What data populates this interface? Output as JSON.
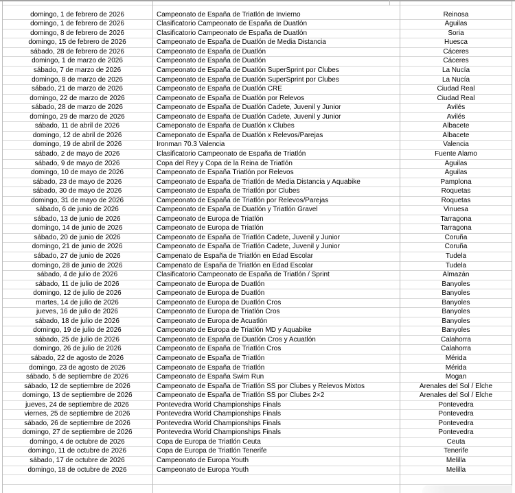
{
  "table": {
    "columns": [
      {
        "key": "date",
        "align": "center"
      },
      {
        "key": "event",
        "align": "left"
      },
      {
        "key": "location",
        "align": "center"
      }
    ],
    "rows": [
      {
        "date": "domingo, 1 de febrero de 2026",
        "event": "Campeonato de España de Triatlón de Invierno",
        "location": "Reinosa"
      },
      {
        "date": "domingo, 1 de febrero de 2026",
        "event": "Clasificatorio Campeonato de España de Duatlón",
        "location": "Aguilas"
      },
      {
        "date": "domingo, 8 de febrero de 2026",
        "event": "Clasificatorio Campeonato de España de Duatlón",
        "location": "Soria"
      },
      {
        "date": "domingo, 15 de febrero de 2026",
        "event": "Campeonato de España de Duatlón de Media Distancia",
        "location": "Huesca"
      },
      {
        "date": "sábado, 28 de febrero de 2026",
        "event": "Campeonato de España de Duatlón",
        "location": "Cáceres"
      },
      {
        "date": "domingo, 1 de marzo de 2026",
        "event": "Campeonato de España de Duatlón",
        "location": "Cáceres"
      },
      {
        "date": "sábado, 7 de marzo de 2026",
        "event": "Campeonato de España de Duatlón SuperSprint por Clubes",
        "location": "La Nucía"
      },
      {
        "date": "domingo, 8 de marzo de 2026",
        "event": "Campeonato de España de Duatlón SuperSprint por Clubes",
        "location": "La Nucía"
      },
      {
        "date": "sábado, 21 de marzo de 2026",
        "event": "Campeonato de España de Duatlón CRE",
        "location": "Ciudad Real"
      },
      {
        "date": "domingo, 22 de marzo de 2026",
        "event": "Campeonato de España de Duatlón por Relevos",
        "location": "Ciudad Real"
      },
      {
        "date": "sábado, 28 de marzo de 2026",
        "event": "Campeonato de España de Duatlón Cadete, Juvenil y Junior",
        "location": "Avilés"
      },
      {
        "date": "domingo, 29 de marzo de 2026",
        "event": "Campeonato de España de Duatlón Cadete, Juvenil y Junior",
        "location": "Avilés"
      },
      {
        "date": "sábado, 11 de abril de 2026",
        "event": "Cameponato de España de Duatlón x Clubes",
        "location": "Albacete"
      },
      {
        "date": "domingo, 12 de abril de 2026",
        "event": "Cameponato de España de Duatlón x Relevos/Parejas",
        "location": "Albacete"
      },
      {
        "date": "domingo, 19 de abril de 2026",
        "event": "Ironman 70.3 Valencia",
        "location": "Valencia"
      },
      {
        "date": "sábado, 2 de mayo de 2026",
        "event": "Clasificatorio Campeonato de España de Triatlón",
        "location": "Fuente Alamo"
      },
      {
        "date": "sábado, 9 de mayo de 2026",
        "event": "Copa del Rey y Copa de la Reina de Triatlón",
        "location": "Aguilas"
      },
      {
        "date": "domingo, 10 de mayo de 2026",
        "event": "Campeonato de España Triatlón por Relevos",
        "location": "Aguilas"
      },
      {
        "date": "sábado, 23 de mayo de 2026",
        "event": "Campeonato de España de Triatlón de Media Distancia y Aquabike",
        "location": "Pamplona"
      },
      {
        "date": "sábado, 30 de mayo de 2026",
        "event": "Campeonato de España de Triatlón por Clubes",
        "location": "Roquetas"
      },
      {
        "date": "domingo, 31 de mayo de 2026",
        "event": "Campeonato de España de Triatlón por Relevos/Parejas",
        "location": "Roquetas"
      },
      {
        "date": "sábado, 6 de junio de 2026",
        "event": "Campeonato de España de Duatlón y Triatlón Gravel",
        "location": "Vinuesa"
      },
      {
        "date": "sábado, 13 de junio de 2026",
        "event": "Campeonato de Europa de Triatlón",
        "location": "Tarragona"
      },
      {
        "date": "domingo, 14 de junio de 2026",
        "event": "Campeonato de Europa de Triatlón",
        "location": "Tarragona"
      },
      {
        "date": "sábado, 20 de junio de 2026",
        "event": "Campeonato de España de Triatlón Cadete, Juvenil y Junior",
        "location": "Coruña"
      },
      {
        "date": "domingo, 21 de junio de 2026",
        "event": "Campeonato de España de Triatlón Cadete, Juvenil y Junior",
        "location": "Coruña"
      },
      {
        "date": "sábado, 27 de junio de 2026",
        "event": "Campenato de España de Triatlón en Edad Escolar",
        "location": "Tudela"
      },
      {
        "date": "domingo, 28 de junio de 2026",
        "event": "Campenato de España de Triatlón en Edad Escolar",
        "location": "Tudela"
      },
      {
        "date": "sábado, 4 de julio de 2026",
        "event": "Clasificatorio Campeonato de España de Triatlón / Sprint",
        "location": "Almazán"
      },
      {
        "date": "sábado, 11 de julio de 2026",
        "event": "Campeonato de Europa de Duatlón",
        "location": "Banyoles"
      },
      {
        "date": "domingo, 12 de julio de 2026",
        "event": "Campeonato de Europa de Duatlón",
        "location": "Banyoles"
      },
      {
        "date": "martes, 14 de julio de 2026",
        "event": "Campeonato de Europa de Duatlón Cros",
        "location": "Banyoles"
      },
      {
        "date": "jueves, 16 de julio de 2026",
        "event": "Campeonato de Europa de Triatlón Cros",
        "location": "Banyoles"
      },
      {
        "date": "sábado, 18 de julio de 2026",
        "event": "Campeonato de Europa de Acuatlón",
        "location": "Banyoles"
      },
      {
        "date": "domingo, 19 de julio de 2026",
        "event": "Campeonato de Europa de Triatlón MD y Aquabike",
        "location": "Banyoles"
      },
      {
        "date": "sábado, 25 de julio de 2026",
        "event": "Campeonato de España de Duatlón Cros y Acuatlón",
        "location": "Calahorra"
      },
      {
        "date": "domingo, 26 de julio de 2026",
        "event": "Campeonato de España de Triatlón Cros",
        "location": "Calahorra"
      },
      {
        "date": "sábado, 22 de agosto de 2026",
        "event": "Campeonato de España de Triatlón",
        "location": "Mérida"
      },
      {
        "date": "domingo, 23 de agosto de 2026",
        "event": "Campeonato de España de Triatlón",
        "location": "Mérida"
      },
      {
        "date": "sábado, 5 de septiembre de 2026",
        "event": "Campeonato de España Swim Run",
        "location": "Mogan"
      },
      {
        "date": "sábado, 12 de septiembre de 2026",
        "event": "Campeonato de España de Triatlón SS por Clubes y Relevos Mixtos",
        "location": "Arenales del Sol / Elche"
      },
      {
        "date": "domingo, 13 de septiembre de 2026",
        "event": "Campeonato de España de Triatlón SS por Clubes 2×2",
        "location": "Arenales del Sol / Elche"
      },
      {
        "date": "jueves, 24 de septiembre de 2026",
        "event": "Pontevedra World Championships Finals",
        "location": "Pontevedra"
      },
      {
        "date": "viernes, 25 de septiembre de 2026",
        "event": "Pontevedra World Championships Finals",
        "location": "Pontevedra"
      },
      {
        "date": "sábado, 26 de septiembre de 2026",
        "event": "Pontevedra World Championships Finals",
        "location": "Pontevedra"
      },
      {
        "date": "domingo, 27 de septiembre de 2026",
        "event": "Pontevedra World Championships Finals",
        "location": "Pontevedra"
      },
      {
        "date": "domingo, 4 de octubre de 2026",
        "event": "Copa de Europa de Triatlón Ceuta",
        "location": "Ceuta"
      },
      {
        "date": "domingo, 11 de octubre de 2026",
        "event": "Copa de Europa de Triatlón Tenerife",
        "location": "Tenerife"
      },
      {
        "date": "sábado, 17 de octubre de 2026",
        "event": "Campeonato de Europa Youth",
        "location": "Melilla"
      },
      {
        "date": "domingo, 18 de octubre de 2026",
        "event": "Campeonato de Europa Youth",
        "location": "Melilla"
      }
    ]
  },
  "colors": {
    "background": "#ffffff",
    "text": "#000000",
    "grid_horizontal": "#d6d6d6",
    "grid_vertical": "#bdbdbd",
    "top_edge": "#a3a3a3",
    "corner_overlay": "#f0f0f0"
  }
}
